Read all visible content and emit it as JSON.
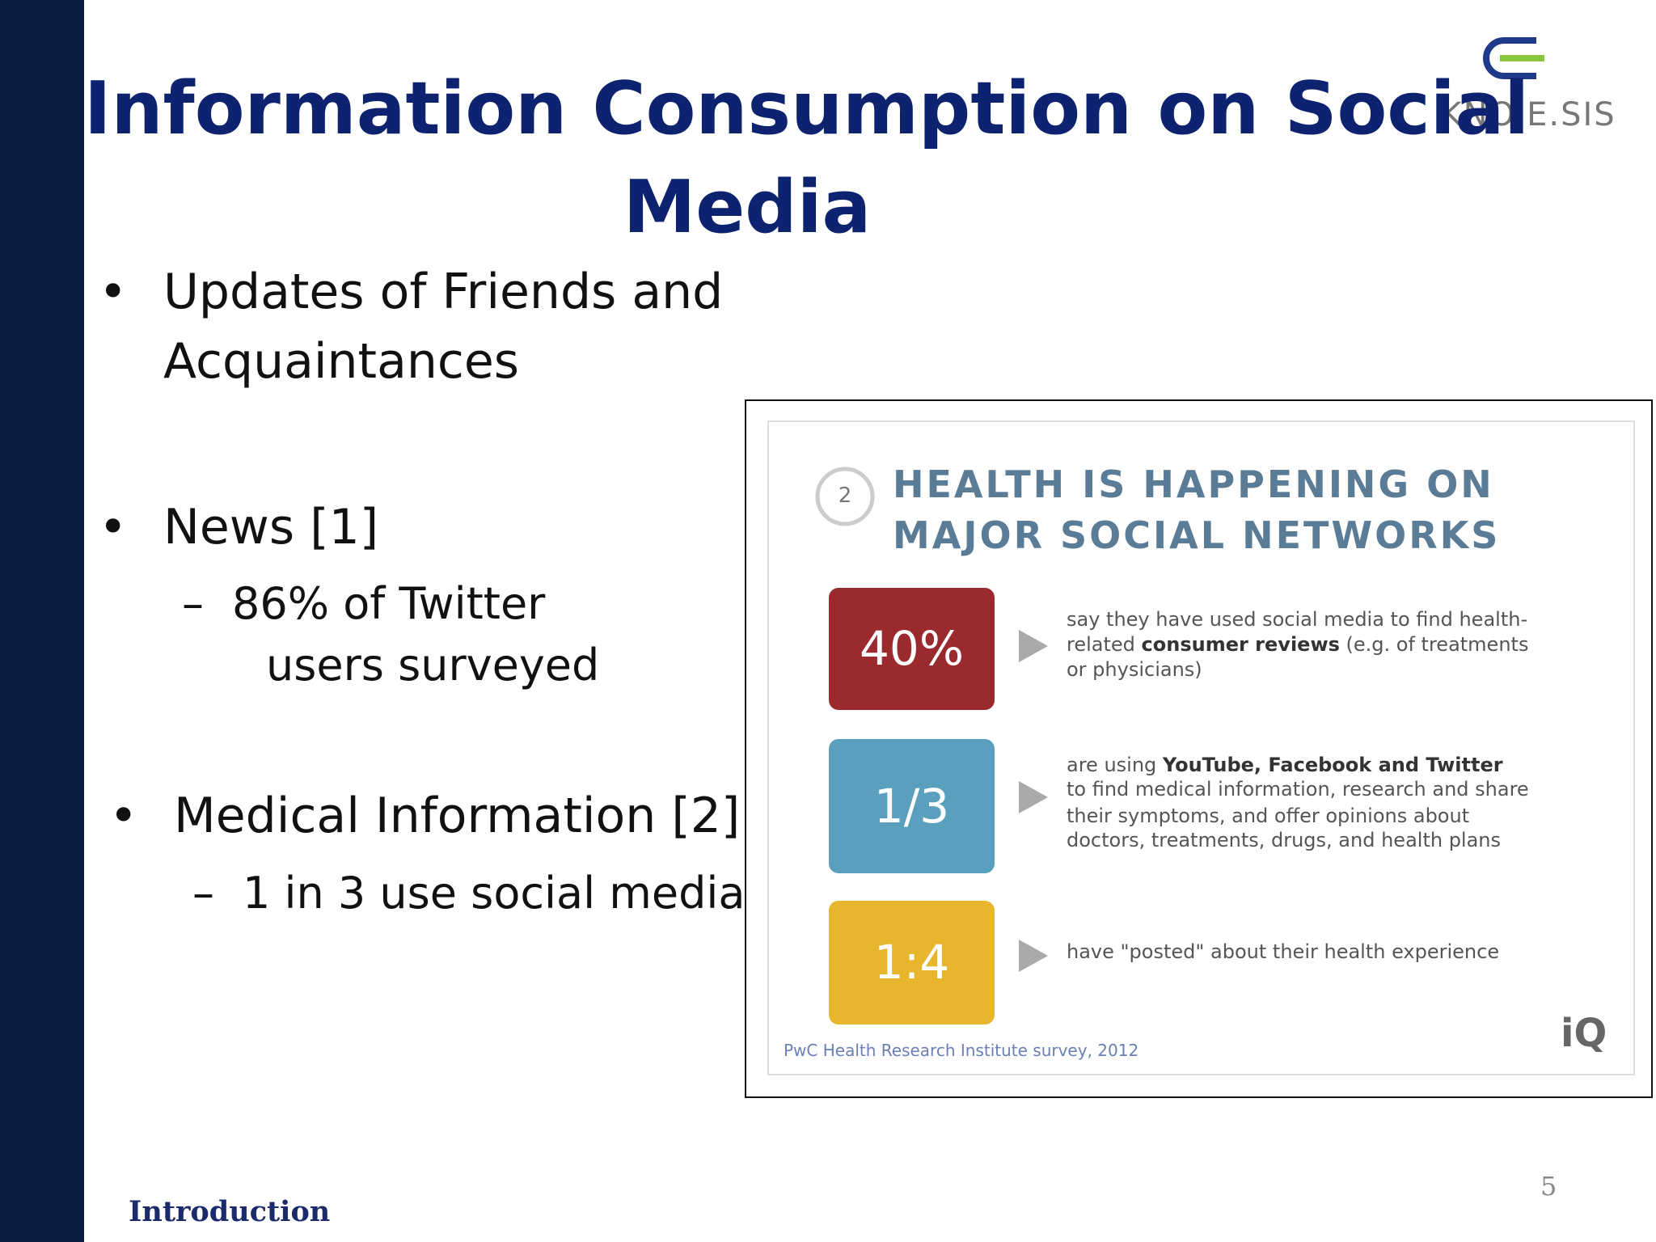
{
  "header": {
    "title_lines": [
      "Information Consumption on Social",
      "Media"
    ],
    "logo": "KNO.E.SIS"
  },
  "bullets": [
    {
      "lines": [
        "Updates of Friends and",
        "Acquaintances"
      ],
      "sub": []
    },
    {
      "lines": [
        "News [1]"
      ],
      "sub": [
        [
          "86%  of Twitter",
          "users surveyed"
        ]
      ]
    },
    {
      "lines": [
        "Medical Information [2]"
      ],
      "sub": [
        [
          "1 in 3 use social media"
        ]
      ]
    }
  ],
  "infographic": {
    "number": "2",
    "heading": [
      "HEALTH IS HAPPENING ON",
      "MAJOR SOCIAL NETWORKS"
    ],
    "items": [
      {
        "stat": "40%",
        "color": "#9b2a2f",
        "lines": [
          [
            {
              "text": "say they have used social media to find health-",
              "bold": false
            }
          ],
          [
            {
              "text": "related ",
              "bold": false
            },
            {
              "text": "consumer reviews",
              "bold": true
            },
            {
              "text": " (e.g. of treatments",
              "bold": false
            }
          ],
          [
            {
              "text": "or physicians)",
              "bold": false
            }
          ]
        ]
      },
      {
        "stat": "1/3",
        "color": "#5b9fbf",
        "lines": [
          [
            {
              "text": "are using ",
              "bold": false
            },
            {
              "text": "YouTube, Facebook and Twitter",
              "bold": true
            }
          ],
          [
            {
              "text": "to find medical information, research and share",
              "bold": false
            }
          ],
          [
            {
              "text": "their symptoms, and offer opinions about",
              "bold": false
            }
          ],
          [
            {
              "text": "doctors, treatments, drugs, and health plans",
              "bold": false
            }
          ]
        ]
      },
      {
        "stat": "1:4",
        "color": "#e8b62c",
        "lines": [
          [
            {
              "text": "have \"posted\" about their health experience",
              "bold": false
            }
          ]
        ]
      }
    ],
    "source": "PwC Health Research Institute survey, 2012",
    "brand": "iQ"
  },
  "footer": {
    "section": "Introduction",
    "page": "5"
  }
}
